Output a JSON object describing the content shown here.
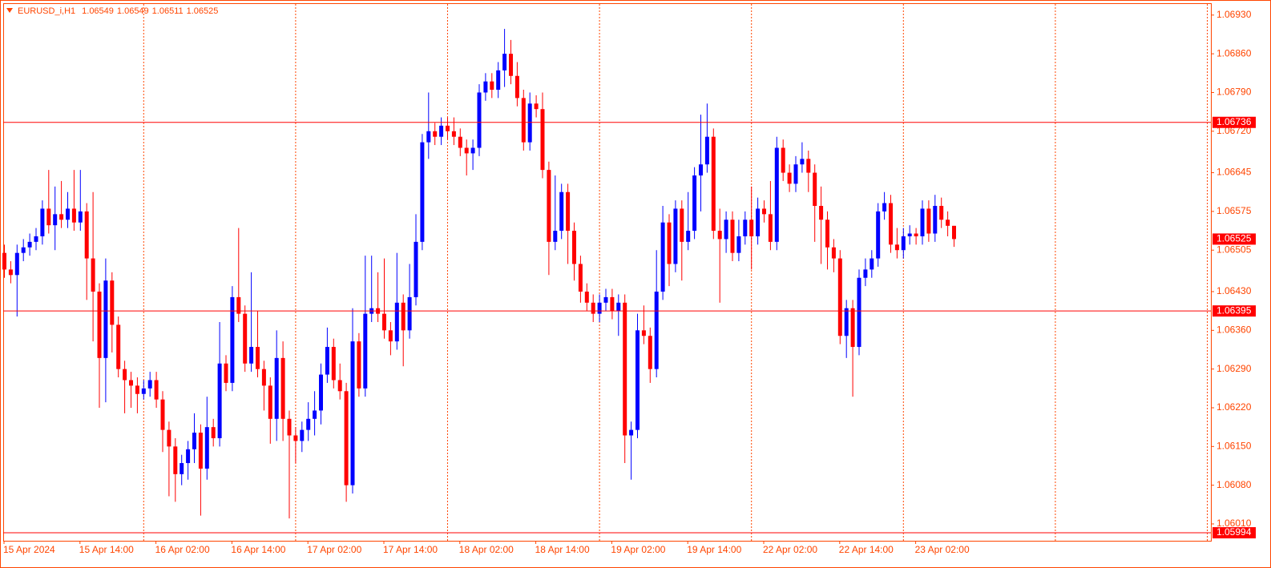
{
  "chart_data": {
    "type": "candlestick",
    "title": "EURUSD_i,H1",
    "bull_color": "#0000ff",
    "bear_color": "#ff0000",
    "hline_color": "#ff0000",
    "ylim": [
      1.05981,
      1.0695
    ],
    "yticks": [
      {
        "value": 1.0693,
        "label": "1.06930"
      },
      {
        "value": 1.0686,
        "label": "1.06860"
      },
      {
        "value": 1.0679,
        "label": "1.06790"
      },
      {
        "value": 1.0672,
        "label": "1.06720"
      },
      1.06645,
      1.06575,
      1.06505,
      {
        "value": 1.0643,
        "label": "1.06430"
      },
      {
        "value": 1.0636,
        "label": "1.06360"
      },
      {
        "value": 1.0629,
        "label": "1.06290"
      },
      {
        "value": 1.0622,
        "label": "1.06220"
      },
      {
        "value": 1.0615,
        "label": "1.06150"
      },
      {
        "value": 1.0608,
        "label": "1.06080"
      },
      {
        "value": 1.0601,
        "label": "1.06010"
      }
    ],
    "hlines": [
      1.06736,
      1.06395,
      1.05994
    ],
    "categories": [
      "15 Apr 2024",
      null,
      null,
      null,
      null,
      null,
      null,
      null,
      null,
      null,
      null,
      null,
      "15 Apr 14:00",
      null,
      null,
      null,
      null,
      null,
      null,
      null,
      null,
      null,
      null,
      null,
      "16 Apr 02:00",
      null,
      null,
      null,
      null,
      null,
      null,
      null,
      null,
      null,
      null,
      null,
      "16 Apr 14:00",
      null,
      null,
      null,
      null,
      null,
      null,
      null,
      null,
      null,
      null,
      null,
      "17 Apr 02:00",
      null,
      null,
      null,
      null,
      null,
      null,
      null,
      null,
      null,
      null,
      null,
      "17 Apr 14:00",
      null,
      null,
      null,
      null,
      null,
      null,
      null,
      null,
      null,
      null,
      null,
      "18 Apr 02:00",
      null,
      null,
      null,
      null,
      null,
      null,
      null,
      null,
      null,
      null,
      null,
      "18 Apr 14:00",
      null,
      null,
      null,
      null,
      null,
      null,
      null,
      null,
      null,
      null,
      null,
      "19 Apr 02:00",
      null,
      null,
      null,
      null,
      null,
      null,
      null,
      null,
      null,
      null,
      null,
      "19 Apr 14:00",
      null,
      null,
      null,
      null,
      null,
      null,
      null,
      null,
      null,
      null,
      null,
      "22 Apr 02:00",
      null,
      null,
      null,
      null,
      null,
      null,
      null,
      null,
      null,
      null,
      null,
      "22 Apr 14:00",
      null,
      null,
      null,
      null,
      null,
      null,
      null,
      null,
      null,
      null,
      null,
      "23 Apr 02:00",
      null,
      null,
      null,
      null,
      null,
      null
    ],
    "open": [
      1.065,
      1.0647,
      1.0646,
      1.065,
      1.0651,
      1.0652,
      1.0653,
      1.0658,
      1.0655,
      1.0657,
      1.0656,
      1.0658,
      1.06555,
      1.06575,
      1.0649,
      1.0643,
      1.0631,
      1.0645,
      1.0637,
      1.0629,
      1.0627,
      1.0626,
      1.06245,
      1.06255,
      1.0627,
      1.06235,
      1.0618,
      1.0615,
      1.061,
      1.0612,
      1.06145,
      1.06175,
      1.0611,
      1.06185,
      1.06165,
      1.063,
      1.06265,
      1.0642,
      1.0639,
      1.063,
      1.0633,
      1.0629,
      1.0626,
      1.062,
      1.0631,
      1.062,
      1.0617,
      1.0616,
      1.0618,
      1.062,
      1.06215,
      1.0628,
      1.0633,
      1.0627,
      1.0625,
      1.0608,
      1.0634,
      1.06255,
      1.0639,
      1.064,
      1.0639,
      1.0636,
      1.0634,
      1.0641,
      1.0636,
      1.0642,
      1.0652,
      1.067,
      1.0672,
      1.0671,
      1.0673,
      1.0672,
      1.0671,
      1.0669,
      1.0668,
      1.0669,
      1.0679,
      1.0681,
      1.06795,
      1.0683,
      1.0686,
      1.0682,
      1.0678,
      1.067,
      1.0677,
      1.0676,
      1.0665,
      1.0652,
      1.0654,
      1.0661,
      1.0654,
      1.0648,
      1.0643,
      1.0641,
      1.0639,
      1.0641,
      1.0642,
      1.06395,
      1.0641,
      1.0617,
      1.0618,
      1.0636,
      1.0635,
      1.0629,
      1.0643,
      1.06555,
      1.0648,
      1.0658,
      1.0652,
      1.0654,
      1.0664,
      1.0666,
      1.0671,
      1.0654,
      1.06525,
      1.0656,
      1.065,
      1.0653,
      1.0656,
      1.0653,
      1.0658,
      1.0657,
      1.0652,
      1.0669,
      1.06645,
      1.06625,
      1.0666,
      1.0667,
      1.06645,
      1.06585,
      1.0656,
      1.0651,
      1.0649,
      1.0635,
      1.064,
      1.0633,
      1.06455,
      1.0647,
      1.0649,
      1.06575,
      1.0659,
      1.06515,
      1.06505,
      1.0653,
      1.06535,
      1.0653,
      1.0658,
      1.06535,
      1.06585,
      1.0656,
      1.06549
    ],
    "high": [
      1.06515,
      1.06485,
      1.06515,
      1.06525,
      1.06535,
      1.06545,
      1.06595,
      1.0665,
      1.0662,
      1.0663,
      1.0661,
      1.0665,
      1.0665,
      1.0659,
      1.0661,
      1.06445,
      1.0649,
      1.06465,
      1.06385,
      1.06305,
      1.06285,
      1.06275,
      1.0627,
      1.06285,
      1.06285,
      1.0625,
      1.06195,
      1.06165,
      1.06135,
      1.0616,
      1.0621,
      1.0619,
      1.0624,
      1.062,
      1.06375,
      1.06315,
      1.0644,
      1.06545,
      1.06405,
      1.06465,
      1.06395,
      1.06305,
      1.06275,
      1.0636,
      1.0634,
      1.06215,
      1.06185,
      1.06195,
      1.0623,
      1.0625,
      1.063,
      1.06365,
      1.06345,
      1.063,
      1.06265,
      1.064,
      1.06355,
      1.06495,
      1.06495,
      1.06465,
      1.0649,
      1.06375,
      1.065,
      1.06425,
      1.0648,
      1.0657,
      1.06715,
      1.0679,
      1.06735,
      1.06745,
      1.06745,
      1.06745,
      1.06725,
      1.06705,
      1.06705,
      1.06805,
      1.06825,
      1.06825,
      1.06845,
      1.06905,
      1.06885,
      1.06845,
      1.06795,
      1.0679,
      1.06785,
      1.0679,
      1.06665,
      1.0664,
      1.06625,
      1.06625,
      1.06555,
      1.06495,
      1.06445,
      1.06425,
      1.06425,
      1.06435,
      1.06435,
      1.06425,
      1.06425,
      1.06195,
      1.0639,
      1.06405,
      1.06365,
      1.06505,
      1.06585,
      1.0657,
      1.06595,
      1.06595,
      1.0661,
      1.06655,
      1.0675,
      1.0677,
      1.06725,
      1.0658,
      1.06575,
      1.06575,
      1.0656,
      1.06575,
      1.0662,
      1.066,
      1.06595,
      1.0663,
      1.0671,
      1.06705,
      1.0666,
      1.06675,
      1.067,
      1.06685,
      1.0666,
      1.0662,
      1.06575,
      1.06525,
      1.06505,
      1.06415,
      1.06415,
      1.0647,
      1.0649,
      1.06505,
      1.0659,
      1.0661,
      1.06605,
      1.06545,
      1.06545,
      1.0655,
      1.06545,
      1.06595,
      1.06595,
      1.06605,
      1.066,
      1.06575,
      1.06549
    ],
    "low": [
      1.06455,
      1.06445,
      1.06385,
      1.06485,
      1.06495,
      1.06505,
      1.06515,
      1.06535,
      1.06505,
      1.06545,
      1.06545,
      1.0654,
      1.0654,
      1.06415,
      1.0634,
      1.0622,
      1.0623,
      1.0632,
      1.06275,
      1.0621,
      1.0622,
      1.0621,
      1.06235,
      1.0624,
      1.0622,
      1.0614,
      1.0606,
      1.0605,
      1.0608,
      1.0609,
      1.0612,
      1.06025,
      1.0609,
      1.0615,
      1.0615,
      1.0625,
      1.0625,
      1.06375,
      1.06285,
      1.06285,
      1.06275,
      1.06215,
      1.06155,
      1.0616,
      1.0616,
      1.0602,
      1.0612,
      1.0614,
      1.0616,
      1.0617,
      1.0619,
      1.06265,
      1.06255,
      1.06235,
      1.0605,
      1.06065,
      1.0624,
      1.0624,
      1.06375,
      1.06375,
      1.06345,
      1.06315,
      1.06325,
      1.06295,
      1.06345,
      1.06405,
      1.06505,
      1.0667,
      1.06695,
      1.06695,
      1.06705,
      1.06695,
      1.06675,
      1.0664,
      1.0665,
      1.06675,
      1.06775,
      1.0678,
      1.0678,
      1.068,
      1.06805,
      1.06765,
      1.06685,
      1.06685,
      1.06745,
      1.06635,
      1.0646,
      1.06505,
      1.06525,
      1.0648,
      1.0645,
      1.0641,
      1.06395,
      1.06375,
      1.06375,
      1.06395,
      1.0638,
      1.0635,
      1.0612,
      1.0609,
      1.06165,
      1.06335,
      1.06265,
      1.06275,
      1.06415,
      1.0644,
      1.06465,
      1.0645,
      1.06505,
      1.06525,
      1.06575,
      1.06645,
      1.06525,
      1.0641,
      1.065,
      1.06485,
      1.06485,
      1.06515,
      1.0647,
      1.06515,
      1.06555,
      1.06505,
      1.06505,
      1.0663,
      1.0661,
      1.0661,
      1.06645,
      1.0661,
      1.0652,
      1.0648,
      1.0647,
      1.06465,
      1.06335,
      1.0631,
      1.0624,
      1.06315,
      1.0644,
      1.06455,
      1.06475,
      1.0656,
      1.065,
      1.0649,
      1.0649,
      1.06515,
      1.06515,
      1.06515,
      1.0652,
      1.0652,
      1.06545,
      1.0653,
      1.06511
    ],
    "close": [
      1.0647,
      1.0646,
      1.065,
      1.0651,
      1.0652,
      1.0653,
      1.0658,
      1.0655,
      1.0657,
      1.0656,
      1.0658,
      1.06555,
      1.06575,
      1.0649,
      1.0643,
      1.0631,
      1.0645,
      1.0637,
      1.0629,
      1.0627,
      1.0626,
      1.06245,
      1.06255,
      1.0627,
      1.06235,
      1.0618,
      1.0615,
      1.061,
      1.0612,
      1.06145,
      1.06175,
      1.0611,
      1.06185,
      1.06165,
      1.063,
      1.06265,
      1.0642,
      1.0639,
      1.063,
      1.0633,
      1.0629,
      1.0626,
      1.062,
      1.0631,
      1.062,
      1.0617,
      1.0616,
      1.0618,
      1.062,
      1.06215,
      1.0628,
      1.0633,
      1.0627,
      1.0625,
      1.0608,
      1.0634,
      1.06255,
      1.0639,
      1.064,
      1.0639,
      1.0636,
      1.0634,
      1.0641,
      1.0636,
      1.0642,
      1.0652,
      1.067,
      1.0672,
      1.0671,
      1.0673,
      1.0672,
      1.0671,
      1.0669,
      1.0668,
      1.0669,
      1.0679,
      1.0681,
      1.06795,
      1.0683,
      1.0686,
      1.0682,
      1.0678,
      1.067,
      1.0677,
      1.0676,
      1.0665,
      1.0652,
      1.0654,
      1.0661,
      1.0654,
      1.0648,
      1.0643,
      1.0641,
      1.0639,
      1.0641,
      1.0642,
      1.06395,
      1.0641,
      1.0617,
      1.0618,
      1.0636,
      1.0635,
      1.0629,
      1.0643,
      1.06555,
      1.0648,
      1.0658,
      1.0652,
      1.0654,
      1.0664,
      1.0666,
      1.0671,
      1.0654,
      1.06525,
      1.0656,
      1.065,
      1.0653,
      1.0656,
      1.0653,
      1.0658,
      1.0657,
      1.0652,
      1.0669,
      1.06645,
      1.06625,
      1.0666,
      1.0667,
      1.06645,
      1.06585,
      1.0656,
      1.0651,
      1.0649,
      1.0635,
      1.064,
      1.0633,
      1.06455,
      1.0647,
      1.0649,
      1.06575,
      1.0659,
      1.06515,
      1.06505,
      1.0653,
      1.06535,
      1.0653,
      1.0658,
      1.06535,
      1.06585,
      1.0656,
      1.06549,
      1.06525
    ]
  }
}
